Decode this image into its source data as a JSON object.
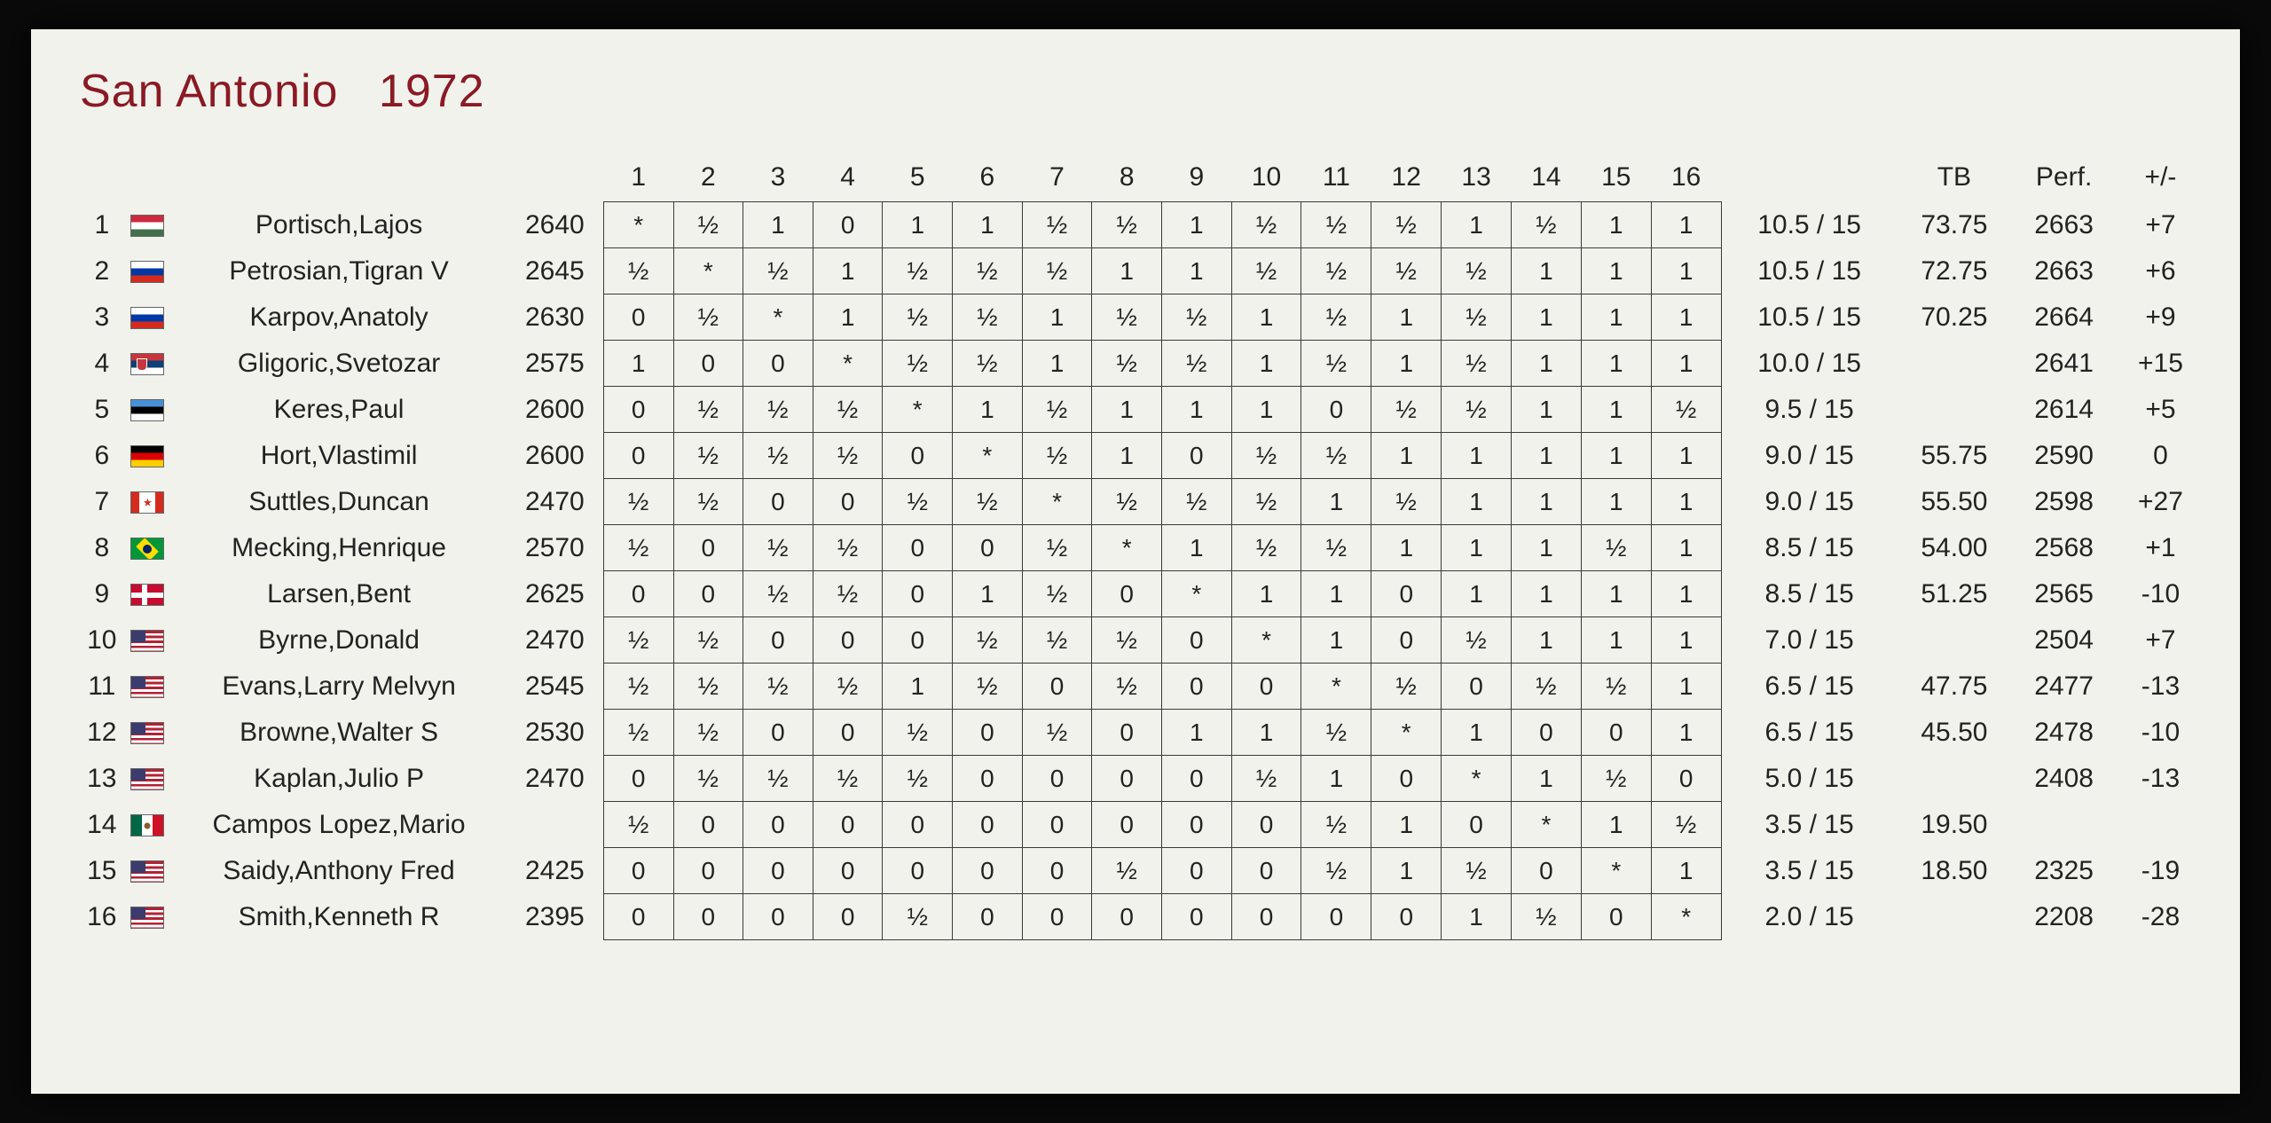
{
  "type": "table",
  "title": {
    "event": "San Antonio",
    "year": "1972"
  },
  "title_color": "#8a1a24",
  "background_color": "#f2f2ec",
  "grid_border_color": "#3a3a3a",
  "font_family": "Arial",
  "title_fontsize": 52,
  "body_fontsize": 30,
  "half_glyph": "½",
  "diag_glyph": "*",
  "n_players": 16,
  "stat_headers": {
    "score": "",
    "tb": "TB",
    "perf": "Perf.",
    "pm": "+/-"
  },
  "flags": {
    "HUN": "flag-hun",
    "RUS": "flag-rus",
    "SRB": "flag-srb",
    "EST": "flag-est",
    "GER": "flag-ger",
    "CAN": "flag-can",
    "BRA": "flag-bra",
    "DEN": "flag-den",
    "USA": "flag-usa",
    "MEX": "flag-mex"
  },
  "players": [
    {
      "rank": 1,
      "flag": "HUN",
      "name": "Portisch,Lajos",
      "rating": "2640",
      "results": [
        "*",
        "½",
        "1",
        "0",
        "1",
        "1",
        "½",
        "½",
        "1",
        "½",
        "½",
        "½",
        "1",
        "½",
        "1",
        "1"
      ],
      "score": "10.5 / 15",
      "tb": "73.75",
      "perf": "2663",
      "pm": "+7"
    },
    {
      "rank": 2,
      "flag": "RUS",
      "name": "Petrosian,Tigran V",
      "rating": "2645",
      "results": [
        "½",
        "*",
        "½",
        "1",
        "½",
        "½",
        "½",
        "1",
        "1",
        "½",
        "½",
        "½",
        "½",
        "1",
        "1",
        "1"
      ],
      "score": "10.5 / 15",
      "tb": "72.75",
      "perf": "2663",
      "pm": "+6"
    },
    {
      "rank": 3,
      "flag": "RUS",
      "name": "Karpov,Anatoly",
      "rating": "2630",
      "results": [
        "0",
        "½",
        "*",
        "1",
        "½",
        "½",
        "1",
        "½",
        "½",
        "1",
        "½",
        "1",
        "½",
        "1",
        "1",
        "1"
      ],
      "score": "10.5 / 15",
      "tb": "70.25",
      "perf": "2664",
      "pm": "+9"
    },
    {
      "rank": 4,
      "flag": "SRB",
      "name": "Gligoric,Svetozar",
      "rating": "2575",
      "results": [
        "1",
        "0",
        "0",
        "*",
        "½",
        "½",
        "1",
        "½",
        "½",
        "1",
        "½",
        "1",
        "½",
        "1",
        "1",
        "1"
      ],
      "score": "10.0 / 15",
      "tb": "",
      "perf": "2641",
      "pm": "+15"
    },
    {
      "rank": 5,
      "flag": "EST",
      "name": "Keres,Paul",
      "rating": "2600",
      "results": [
        "0",
        "½",
        "½",
        "½",
        "*",
        "1",
        "½",
        "1",
        "1",
        "1",
        "0",
        "½",
        "½",
        "1",
        "1",
        "½"
      ],
      "score": "9.5 / 15",
      "tb": "",
      "perf": "2614",
      "pm": "+5"
    },
    {
      "rank": 6,
      "flag": "GER",
      "name": "Hort,Vlastimil",
      "rating": "2600",
      "results": [
        "0",
        "½",
        "½",
        "½",
        "0",
        "*",
        "½",
        "1",
        "0",
        "½",
        "½",
        "1",
        "1",
        "1",
        "1",
        "1"
      ],
      "score": "9.0 / 15",
      "tb": "55.75",
      "perf": "2590",
      "pm": "0"
    },
    {
      "rank": 7,
      "flag": "CAN",
      "name": "Suttles,Duncan",
      "rating": "2470",
      "results": [
        "½",
        "½",
        "0",
        "0",
        "½",
        "½",
        "*",
        "½",
        "½",
        "½",
        "1",
        "½",
        "1",
        "1",
        "1",
        "1"
      ],
      "score": "9.0 / 15",
      "tb": "55.50",
      "perf": "2598",
      "pm": "+27"
    },
    {
      "rank": 8,
      "flag": "BRA",
      "name": "Mecking,Henrique",
      "rating": "2570",
      "results": [
        "½",
        "0",
        "½",
        "½",
        "0",
        "0",
        "½",
        "*",
        "1",
        "½",
        "½",
        "1",
        "1",
        "1",
        "½",
        "1"
      ],
      "score": "8.5 / 15",
      "tb": "54.00",
      "perf": "2568",
      "pm": "+1"
    },
    {
      "rank": 9,
      "flag": "DEN",
      "name": "Larsen,Bent",
      "rating": "2625",
      "results": [
        "0",
        "0",
        "½",
        "½",
        "0",
        "1",
        "½",
        "0",
        "*",
        "1",
        "1",
        "0",
        "1",
        "1",
        "1",
        "1"
      ],
      "score": "8.5 / 15",
      "tb": "51.25",
      "perf": "2565",
      "pm": "-10"
    },
    {
      "rank": 10,
      "flag": "USA",
      "name": "Byrne,Donald",
      "rating": "2470",
      "results": [
        "½",
        "½",
        "0",
        "0",
        "0",
        "½",
        "½",
        "½",
        "0",
        "*",
        "1",
        "0",
        "½",
        "1",
        "1",
        "1"
      ],
      "score": "7.0 / 15",
      "tb": "",
      "perf": "2504",
      "pm": "+7"
    },
    {
      "rank": 11,
      "flag": "USA",
      "name": "Evans,Larry Melvyn",
      "rating": "2545",
      "results": [
        "½",
        "½",
        "½",
        "½",
        "1",
        "½",
        "0",
        "½",
        "0",
        "0",
        "*",
        "½",
        "0",
        "½",
        "½",
        "1"
      ],
      "score": "6.5 / 15",
      "tb": "47.75",
      "perf": "2477",
      "pm": "-13"
    },
    {
      "rank": 12,
      "flag": "USA",
      "name": "Browne,Walter S",
      "rating": "2530",
      "results": [
        "½",
        "½",
        "0",
        "0",
        "½",
        "0",
        "½",
        "0",
        "1",
        "1",
        "½",
        "*",
        "1",
        "0",
        "0",
        "1"
      ],
      "score": "6.5 / 15",
      "tb": "45.50",
      "perf": "2478",
      "pm": "-10"
    },
    {
      "rank": 13,
      "flag": "USA",
      "name": "Kaplan,Julio P",
      "rating": "2470",
      "results": [
        "0",
        "½",
        "½",
        "½",
        "½",
        "0",
        "0",
        "0",
        "0",
        "½",
        "1",
        "0",
        "*",
        "1",
        "½",
        "0"
      ],
      "score": "5.0 / 15",
      "tb": "",
      "perf": "2408",
      "pm": "-13"
    },
    {
      "rank": 14,
      "flag": "MEX",
      "name": "Campos Lopez,Mario",
      "rating": "",
      "results": [
        "½",
        "0",
        "0",
        "0",
        "0",
        "0",
        "0",
        "0",
        "0",
        "0",
        "½",
        "1",
        "0",
        "*",
        "1",
        "½"
      ],
      "score": "3.5 / 15",
      "tb": "19.50",
      "perf": "",
      "pm": ""
    },
    {
      "rank": 15,
      "flag": "USA",
      "name": "Saidy,Anthony Fred",
      "rating": "2425",
      "results": [
        "0",
        "0",
        "0",
        "0",
        "0",
        "0",
        "0",
        "½",
        "0",
        "0",
        "½",
        "1",
        "½",
        "0",
        "*",
        "1"
      ],
      "score": "3.5 / 15",
      "tb": "18.50",
      "perf": "2325",
      "pm": "-19"
    },
    {
      "rank": 16,
      "flag": "USA",
      "name": "Smith,Kenneth R",
      "rating": "2395",
      "results": [
        "0",
        "0",
        "0",
        "0",
        "½",
        "0",
        "0",
        "0",
        "0",
        "0",
        "0",
        "0",
        "1",
        "½",
        "0",
        "*"
      ],
      "score": "2.0 / 15",
      "tb": "",
      "perf": "2208",
      "pm": "-28"
    }
  ]
}
